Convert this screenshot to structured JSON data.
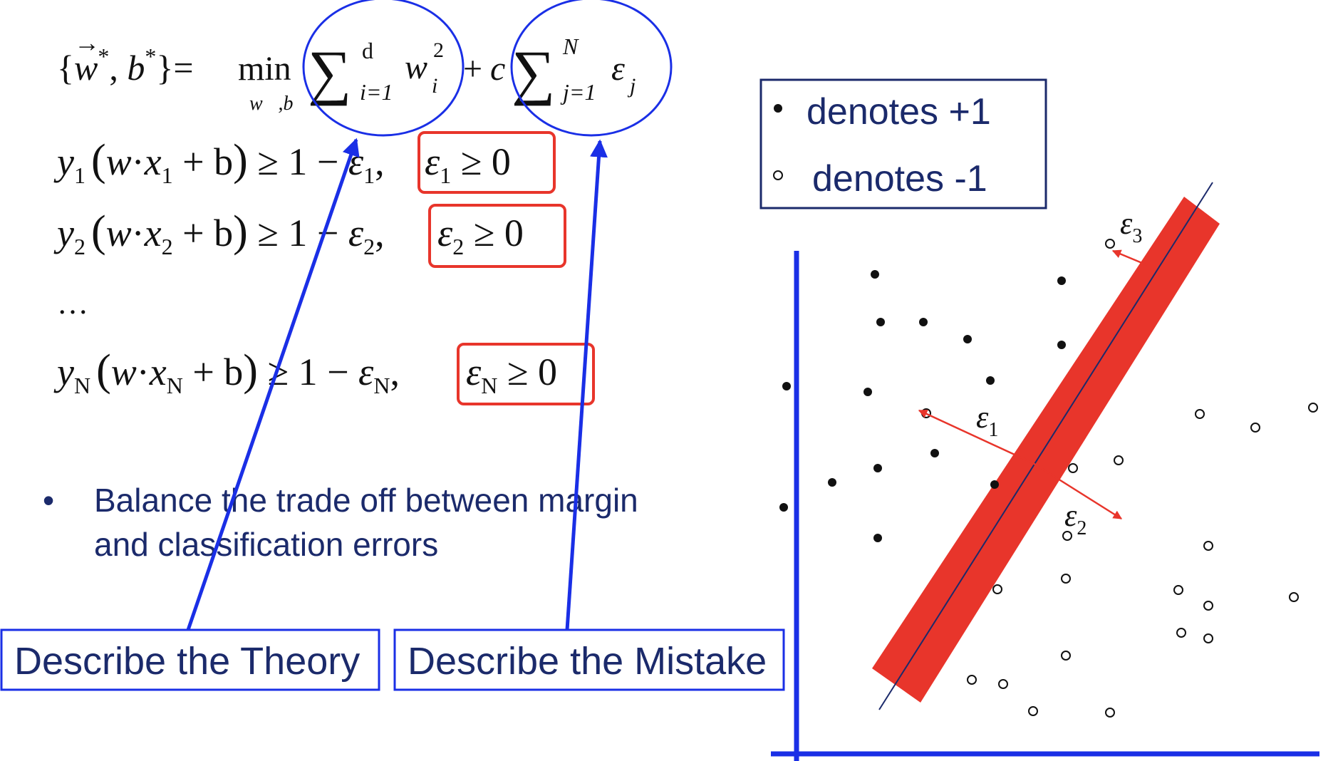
{
  "equations": {
    "objective": {
      "lhs_open": "{",
      "w": "w",
      "arrow": "⃗",
      "star": "*",
      "comma": ", ",
      "b": "b",
      "rhs_close": "}=",
      "min": "min",
      "min_sub": "w⃗,b",
      "sum_sym": "∑",
      "sum1_upper": "d",
      "sum1_lower": "i=1",
      "term1": "w",
      "term1_sub": "i",
      "term1_sup": "2",
      "plus": "+",
      "c": "c",
      "sum2_upper": "N",
      "sum2_lower": "j=1",
      "eps": "ε",
      "eps_sub": "j"
    },
    "constraints": [
      {
        "y_sub": "1",
        "x_sub": "1",
        "eps_sub": "1",
        "tail": " ≥ 0"
      },
      {
        "y_sub": "2",
        "x_sub": "2",
        "eps_sub": "2",
        "tail": " ≥ 0"
      },
      {
        "y_sub": "N",
        "x_sub": "N",
        "eps_sub": "N",
        "tail": " ≥ 0"
      }
    ],
    "constraint_parts": {
      "y": "y",
      "open": "(",
      "w": "w",
      "dot": "·",
      "x": "x",
      "plus_b": " + b",
      "close": ")",
      "ge_one_minus": " ≥ 1 − ",
      "eps": "ε",
      "comma": ","
    },
    "ellipsis": "…"
  },
  "bullet": {
    "marker": "•",
    "line1": "Balance the trade off between margin",
    "line2": "and classification errors"
  },
  "callouts": {
    "theory": "Describe the Theory",
    "mistake": "Describe the Mistake"
  },
  "legend": {
    "positive_label": "denotes +1",
    "negative_label": "denotes -1"
  },
  "plot": {
    "slack_labels": [
      {
        "sym": "ε",
        "sub": "1"
      },
      {
        "sym": "ε",
        "sub": "2"
      },
      {
        "sym": "ε",
        "sub": "3"
      }
    ]
  },
  "colors": {
    "blue": "#1a2fe6",
    "red": "#e8352b",
    "navy": "#1b2a6b",
    "text": "#111111"
  }
}
